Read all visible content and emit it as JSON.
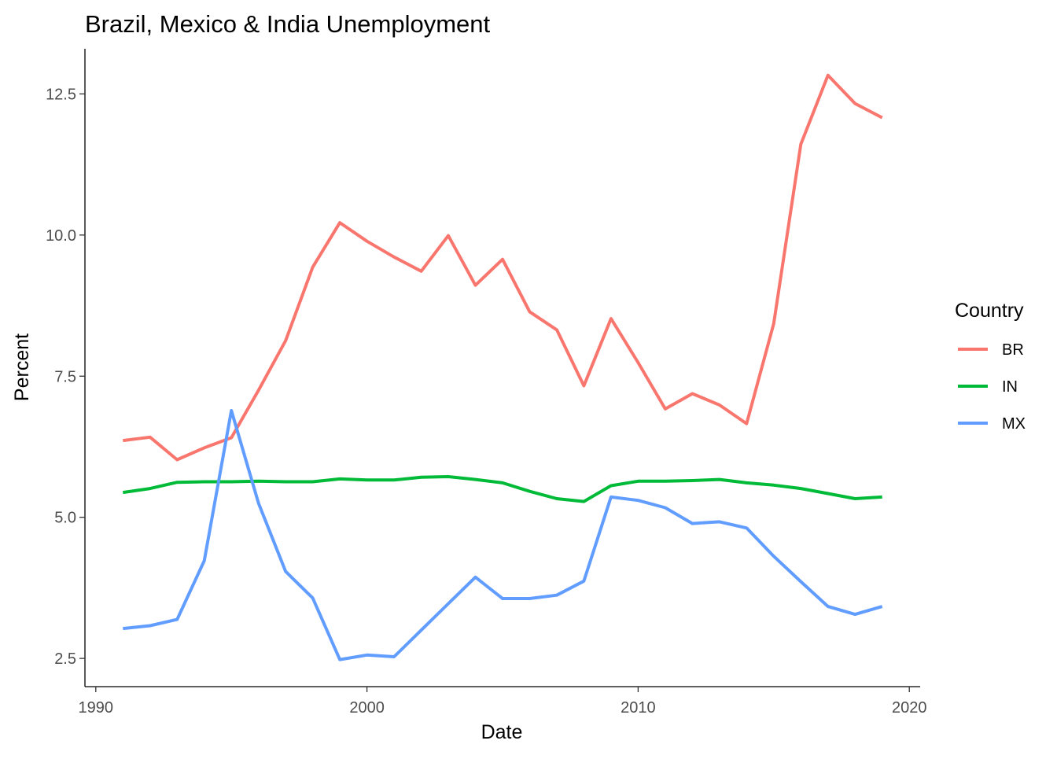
{
  "chart_data": {
    "type": "line",
    "title": "Brazil, Mexico & India Unemployment",
    "xlabel": "Date",
    "ylabel": "Percent",
    "xlim": [
      1989.6,
      2020.4
    ],
    "ylim": [
      2.0,
      13.3
    ],
    "x_ticks": [
      1990,
      2000,
      2010,
      2020
    ],
    "x_tick_labels": [
      "1990",
      "2000",
      "2010",
      "2020"
    ],
    "y_ticks": [
      2.5,
      5.0,
      7.5,
      10.0,
      12.5
    ],
    "y_tick_labels": [
      "2.5",
      "5.0",
      "7.5",
      "10.0",
      "12.5"
    ],
    "grid": false,
    "legend": {
      "title": "Country",
      "position": "right"
    },
    "x": [
      1991,
      1992,
      1993,
      1994,
      1995,
      1996,
      1997,
      1998,
      1999,
      2000,
      2001,
      2002,
      2003,
      2004,
      2005,
      2006,
      2007,
      2008,
      2009,
      2010,
      2011,
      2012,
      2013,
      2014,
      2015,
      2016,
      2017,
      2018,
      2019
    ],
    "series": [
      {
        "name": "BR",
        "color": "#F8766D",
        "values": [
          6.36,
          6.42,
          6.02,
          6.23,
          6.41,
          7.25,
          8.13,
          9.43,
          10.22,
          9.89,
          9.61,
          9.36,
          9.99,
          9.11,
          9.57,
          8.64,
          8.32,
          7.33,
          8.52,
          7.74,
          6.92,
          7.19,
          6.99,
          6.66,
          8.43,
          11.61,
          12.83,
          12.33,
          12.08
        ]
      },
      {
        "name": "IN",
        "color": "#00BA38",
        "values": [
          5.44,
          5.51,
          5.62,
          5.63,
          5.63,
          5.64,
          5.63,
          5.63,
          5.68,
          5.66,
          5.66,
          5.71,
          5.72,
          5.67,
          5.61,
          5.46,
          5.33,
          5.28,
          5.56,
          5.64,
          5.64,
          5.65,
          5.67,
          5.61,
          5.57,
          5.51,
          5.42,
          5.33,
          5.36
        ]
      },
      {
        "name": "MX",
        "color": "#619CFF",
        "values": [
          3.03,
          3.08,
          3.19,
          4.23,
          6.89,
          5.25,
          4.04,
          3.57,
          2.48,
          2.56,
          2.53,
          3.0,
          3.47,
          3.94,
          3.56,
          3.56,
          3.62,
          3.87,
          5.36,
          5.3,
          5.17,
          4.89,
          4.92,
          4.81,
          4.31,
          3.86,
          3.42,
          3.28,
          3.42
        ]
      }
    ]
  }
}
